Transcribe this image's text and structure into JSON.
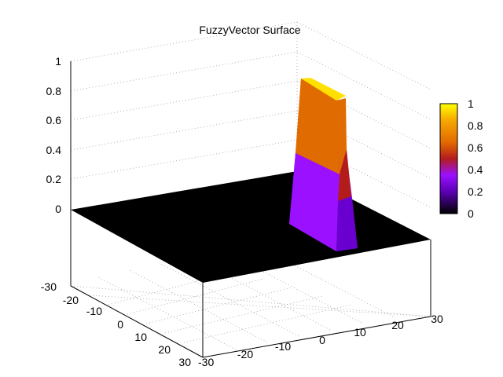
{
  "chart_data": {
    "type": "surface3d",
    "title": "FuzzyVector Surface",
    "xlabel": "",
    "ylabel": "",
    "zlabel": "",
    "x_ticks": [
      "-30",
      "-20",
      "-10",
      "0",
      "10",
      "20",
      "30"
    ],
    "y_ticks": [
      "-30",
      "-20",
      "-10",
      "0",
      "10",
      "20",
      "30"
    ],
    "z_ticks": [
      "0",
      "0.2",
      "0.4",
      "0.6",
      "0.8",
      "1"
    ],
    "colorbar_ticks": [
      "0",
      "0.2",
      "0.4",
      "0.6",
      "0.8",
      "1"
    ],
    "xlim": [
      -30,
      30
    ],
    "ylim": [
      -30,
      30
    ],
    "zlim": [
      0,
      1
    ],
    "floor_value": 0,
    "peak": {
      "plateau_value": 1,
      "segments": [
        {
          "z": 0.0,
          "color": "#000000"
        },
        {
          "z": 0.4,
          "color": "#9a10ff"
        },
        {
          "z": 0.8,
          "color": "#e06b00"
        },
        {
          "z": 1.0,
          "color": "#ffe000"
        }
      ]
    },
    "palette": [
      "#000000",
      "#5b00b5",
      "#9a10ff",
      "#b41c1c",
      "#e36a00",
      "#f6a800",
      "#ffff00"
    ],
    "grid": true,
    "colorbar": "right"
  }
}
